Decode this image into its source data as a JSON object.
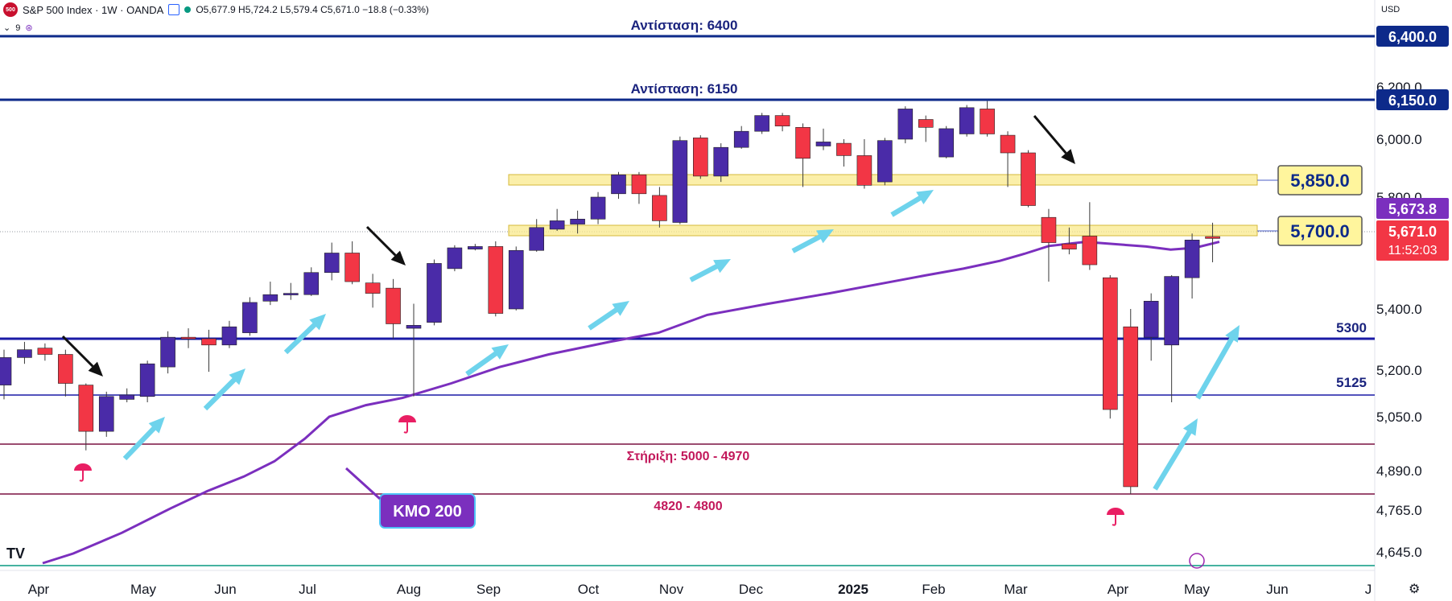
{
  "header": {
    "logo_text": "500",
    "title": "S&P 500 Index · 1W · OANDA",
    "ohlc": "O5,677.9 H5,724.2 L5,579.4 C5,671.0 −18.8 (−0.33%)",
    "sub_count": "9"
  },
  "currency": "USD",
  "tv_logo": "TV",
  "chart_data": {
    "type": "candlestick",
    "title": "S&P 500 Index · 1W · OANDA",
    "x_labels": [
      "Apr",
      "May",
      "Jun",
      "Jul",
      "Aug",
      "Sep",
      "Oct",
      "Nov",
      "Dec",
      "2025",
      "Feb",
      "Mar",
      "Apr",
      "May",
      "Jun",
      "J"
    ],
    "y_ticks": [
      6400,
      6200,
      6000,
      5800,
      5400,
      5200,
      5050,
      4890,
      4765,
      4645
    ],
    "y_tick_labels": [
      "6,400.0",
      "6,200.0",
      "6,000.0",
      "5,800.0",
      "5,400.0",
      "5,200.0",
      "5,050.0",
      "4,890.0",
      "4,765.0",
      "4,645.0"
    ],
    "ylim": [
      4600,
      6450
    ],
    "candles": [
      {
        "o": 5155,
        "c": 5240,
        "h": 5265,
        "l": 5110
      },
      {
        "o": 5240,
        "c": 5265,
        "h": 5290,
        "l": 5220
      },
      {
        "o": 5270,
        "c": 5250,
        "h": 5285,
        "l": 5230
      },
      {
        "o": 5250,
        "c": 5160,
        "h": 5265,
        "l": 5120
      },
      {
        "o": 5155,
        "c": 5010,
        "h": 5160,
        "l": 4955
      },
      {
        "o": 5010,
        "c": 5120,
        "h": 5135,
        "l": 4995
      },
      {
        "o": 5110,
        "c": 5125,
        "h": 5145,
        "l": 5100
      },
      {
        "o": 5120,
        "c": 5220,
        "h": 5230,
        "l": 5100
      },
      {
        "o": 5210,
        "c": 5305,
        "h": 5325,
        "l": 5190
      },
      {
        "o": 5305,
        "c": 5300,
        "h": 5335,
        "l": 5270
      },
      {
        "o": 5300,
        "c": 5280,
        "h": 5330,
        "l": 5195
      },
      {
        "o": 5280,
        "c": 5340,
        "h": 5360,
        "l": 5270
      },
      {
        "o": 5320,
        "c": 5425,
        "h": 5445,
        "l": 5310
      },
      {
        "o": 5430,
        "c": 5455,
        "h": 5505,
        "l": 5415
      },
      {
        "o": 5455,
        "c": 5460,
        "h": 5500,
        "l": 5435
      },
      {
        "o": 5455,
        "c": 5540,
        "h": 5560,
        "l": 5450
      },
      {
        "o": 5540,
        "c": 5615,
        "h": 5655,
        "l": 5510
      },
      {
        "o": 5615,
        "c": 5505,
        "h": 5660,
        "l": 5495
      },
      {
        "o": 5500,
        "c": 5460,
        "h": 5535,
        "l": 5405
      },
      {
        "o": 5480,
        "c": 5350,
        "h": 5515,
        "l": 5300
      },
      {
        "o": 5335,
        "c": 5345,
        "h": 5420,
        "l": 5120
      },
      {
        "o": 5355,
        "c": 5575,
        "h": 5590,
        "l": 5345
      },
      {
        "o": 5555,
        "c": 5635,
        "h": 5645,
        "l": 5545
      },
      {
        "o": 5630,
        "c": 5640,
        "h": 5650,
        "l": 5625
      },
      {
        "o": 5640,
        "c": 5385,
        "h": 5660,
        "l": 5375
      },
      {
        "o": 5400,
        "c": 5625,
        "h": 5640,
        "l": 5395
      },
      {
        "o": 5625,
        "c": 5710,
        "h": 5735,
        "l": 5620
      },
      {
        "o": 5705,
        "c": 5730,
        "h": 5765,
        "l": 5700
      },
      {
        "o": 5720,
        "c": 5735,
        "h": 5760,
        "l": 5690
      },
      {
        "o": 5735,
        "c": 5800,
        "h": 5815,
        "l": 5720
      },
      {
        "o": 5810,
        "c": 5870,
        "h": 5880,
        "l": 5795
      },
      {
        "o": 5870,
        "c": 5810,
        "h": 5880,
        "l": 5780
      },
      {
        "o": 5805,
        "c": 5730,
        "h": 5830,
        "l": 5710
      },
      {
        "o": 5725,
        "c": 5995,
        "h": 6010,
        "l": 5720
      },
      {
        "o": 6005,
        "c": 5865,
        "h": 6015,
        "l": 5855
      },
      {
        "o": 5865,
        "c": 5970,
        "h": 5985,
        "l": 5845
      },
      {
        "o": 5970,
        "c": 6030,
        "h": 6050,
        "l": 5965
      },
      {
        "o": 6030,
        "c": 6090,
        "h": 6100,
        "l": 6020
      },
      {
        "o": 6090,
        "c": 6050,
        "h": 6100,
        "l": 6030
      },
      {
        "o": 6045,
        "c": 5930,
        "h": 6060,
        "l": 5830
      },
      {
        "o": 5975,
        "c": 5990,
        "h": 6040,
        "l": 5960
      },
      {
        "o": 5985,
        "c": 5940,
        "h": 6000,
        "l": 5900
      },
      {
        "o": 5940,
        "c": 5835,
        "h": 6000,
        "l": 5825
      },
      {
        "o": 5845,
        "c": 5995,
        "h": 6005,
        "l": 5835
      },
      {
        "o": 6000,
        "c": 6115,
        "h": 6125,
        "l": 5985
      },
      {
        "o": 6075,
        "c": 6045,
        "h": 6090,
        "l": 5990
      },
      {
        "o": 5935,
        "c": 6040,
        "h": 6050,
        "l": 5930
      },
      {
        "o": 6020,
        "c": 6120,
        "h": 6130,
        "l": 6010
      },
      {
        "o": 6115,
        "c": 6020,
        "h": 6145,
        "l": 6010
      },
      {
        "o": 6015,
        "c": 5950,
        "h": 6030,
        "l": 5830
      },
      {
        "o": 5950,
        "c": 5775,
        "h": 5960,
        "l": 5770
      },
      {
        "o": 5740,
        "c": 5655,
        "h": 5765,
        "l": 5505
      },
      {
        "o": 5650,
        "c": 5630,
        "h": 5710,
        "l": 5610
      },
      {
        "o": 5680,
        "c": 5570,
        "h": 5785,
        "l": 5550
      },
      {
        "o": 5520,
        "c": 5075,
        "h": 5530,
        "l": 5045
      },
      {
        "o": 5340,
        "c": 4835,
        "h": 5400,
        "l": 4810
      },
      {
        "o": 5305,
        "c": 5430,
        "h": 5460,
        "l": 5230
      },
      {
        "o": 5280,
        "c": 5525,
        "h": 5530,
        "l": 5100
      },
      {
        "o": 5520,
        "c": 5665,
        "h": 5690,
        "l": 5440
      },
      {
        "o": 5677.9,
        "c": 5671.0,
        "h": 5724.2,
        "l": 5579.4
      }
    ],
    "ma200": {
      "name": "KMO 200",
      "values": [
        4610,
        4640,
        4700,
        4770,
        4820,
        4870,
        4920,
        4990,
        5050,
        5090,
        5115,
        5160,
        5210,
        5250,
        5290,
        5320,
        5380,
        5420,
        5460,
        5495,
        5530,
        5555,
        5585,
        5612,
        5642,
        5658,
        5640,
        5628,
        5635,
        5658
      ],
      "x_fracs": [
        0.035,
        0.06,
        0.1,
        0.14,
        0.17,
        0.2,
        0.225,
        0.25,
        0.27,
        0.3,
        0.33,
        0.37,
        0.41,
        0.45,
        0.5,
        0.54,
        0.58,
        0.63,
        0.68,
        0.72,
        0.76,
        0.79,
        0.82,
        0.84,
        0.86,
        0.89,
        0.94,
        0.96,
        0.98,
        1.0
      ]
    },
    "horizontal_levels": [
      {
        "value": 6400,
        "label": "Αντίσταση: 6400",
        "tag": "6,400.0",
        "color": "#0d2a8a",
        "width": 3
      },
      {
        "value": 6150,
        "label": "Αντίσταση: 6150",
        "tag": "6,150.0",
        "color": "#0d2a8a",
        "width": 3
      },
      {
        "value": 5300,
        "label": "5300",
        "color": "#1a1aa6",
        "width": 3
      },
      {
        "value": 5125,
        "label": "5125",
        "color": "#1a1aa6",
        "width": 1.5
      },
      {
        "value": 4975,
        "label": "Στήριξη: 5000 - 4970",
        "color": "#7a1040",
        "width": 1.5
      },
      {
        "value": 4810,
        "label": "4820 - 4800",
        "color": "#7a1040",
        "width": 1.5
      }
    ],
    "zones": [
      {
        "value": 5850,
        "tag": "5,850.0"
      },
      {
        "value": 5700,
        "tag": "5,700.0"
      }
    ],
    "price_tags": [
      {
        "value": 5673.8,
        "text": "5,673.8",
        "color": "#7b2fbe"
      },
      {
        "value": 5671.0,
        "text": "5,671.0",
        "sub": "11:52:03",
        "color": "#f23645"
      }
    ],
    "annotation_ma": "KMO 200"
  }
}
